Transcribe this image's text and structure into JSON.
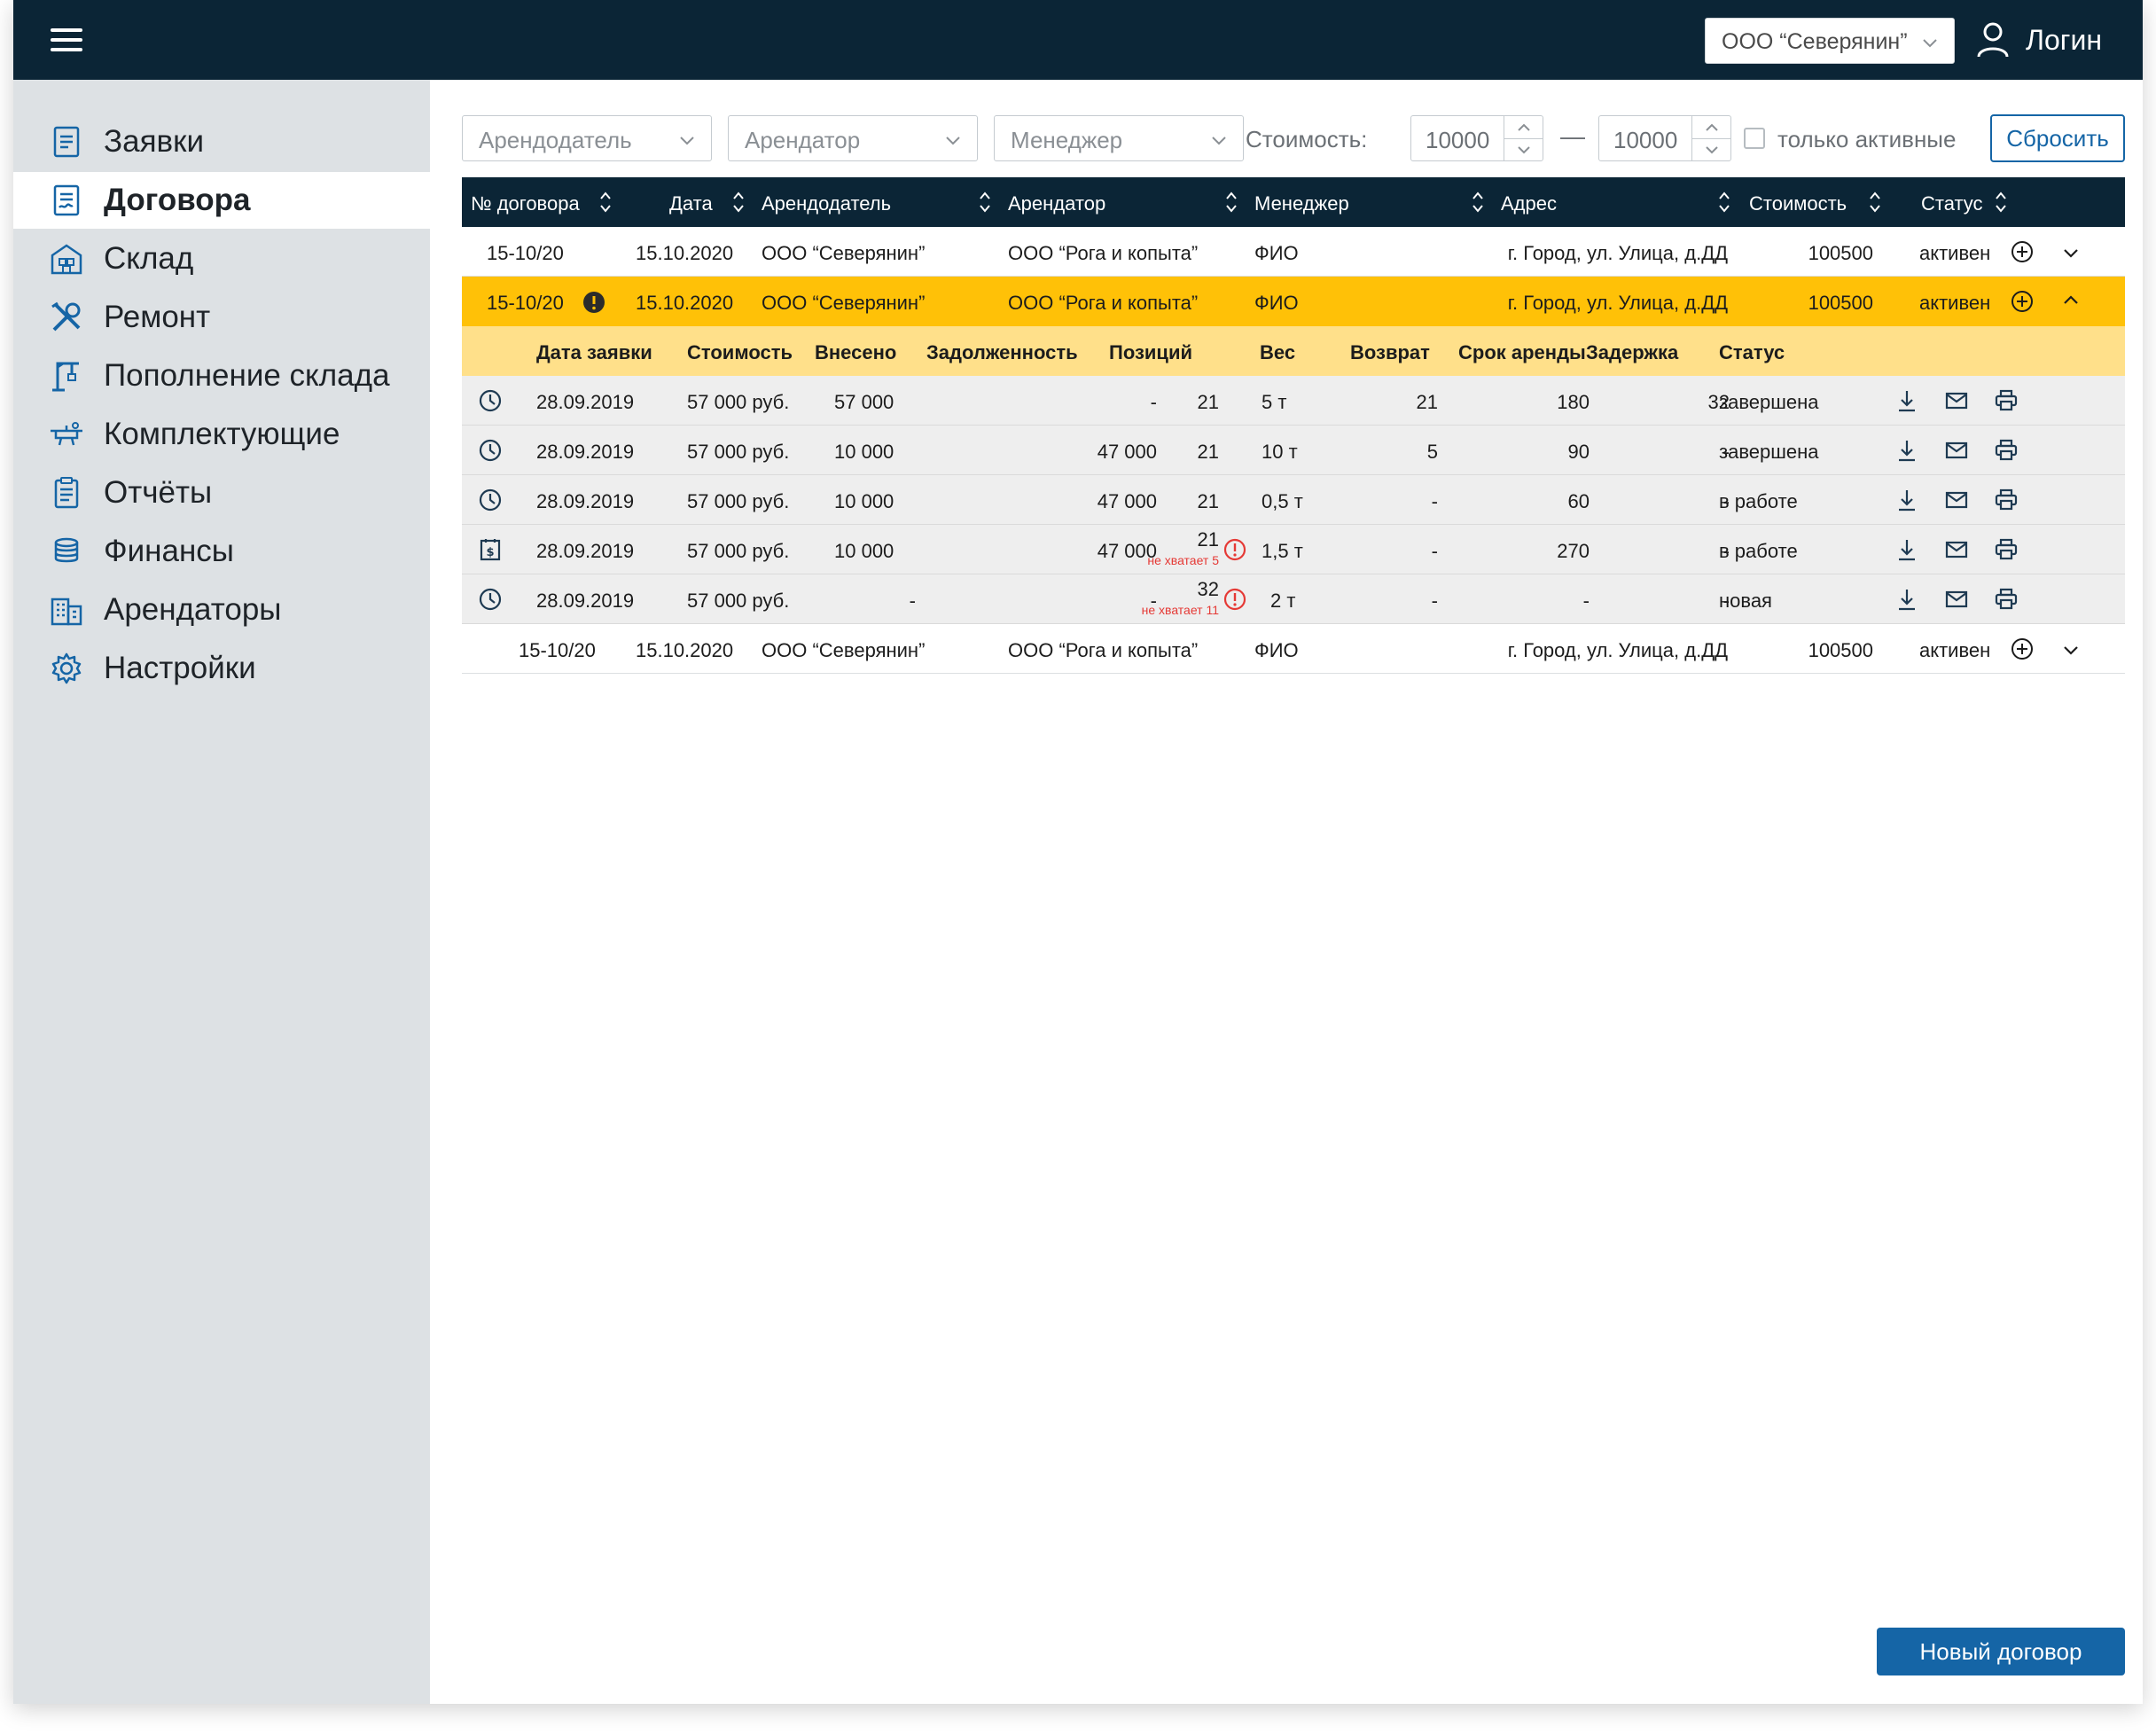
{
  "header": {
    "company": "ООО “Северянин”",
    "user": "Логин"
  },
  "sidebar": {
    "items": [
      {
        "label": "Заявки",
        "icon": "document-list-icon"
      },
      {
        "label": "Договора",
        "icon": "contract-icon",
        "active": true
      },
      {
        "label": "Склад",
        "icon": "warehouse-icon"
      },
      {
        "label": "Ремонт",
        "icon": "tools-icon"
      },
      {
        "label": "Пополнение склада",
        "icon": "crane-icon"
      },
      {
        "label": "Комплектующие",
        "icon": "components-icon"
      },
      {
        "label": "Отчёты",
        "icon": "clipboard-icon"
      },
      {
        "label": "Финансы",
        "icon": "coins-icon"
      },
      {
        "label": "Арендаторы",
        "icon": "buildings-icon"
      },
      {
        "label": "Настройки",
        "icon": "gear-icon"
      }
    ]
  },
  "filters": {
    "landlord": "Арендодатель",
    "tenant": "Арендатор",
    "manager": "Менеджер",
    "cost_label": "Стоимость:",
    "cost_from": "10000",
    "cost_to": "10000",
    "dash": "—",
    "only_active": "только активные",
    "reset": "Сбросить"
  },
  "table": {
    "headers": {
      "number": "№ договора",
      "date": "Дата",
      "landlord": "Арендодатель",
      "tenant": "Арендатор",
      "manager": "Менеджер",
      "address": "Адрес",
      "cost": "Стоимость",
      "status": "Статус"
    },
    "rows": [
      {
        "number": "15-10/20",
        "date": "15.10.2020",
        "landlord": "ООО “Северянин”",
        "tenant": "ООО “Рога и копыта”",
        "manager": "ФИО",
        "address": "г. Город, ул. Улица, д.ДД",
        "cost": "100500",
        "status": "активен"
      },
      {
        "number": "15-10/20",
        "date": "15.10.2020",
        "landlord": "ООО “Северянин”",
        "tenant": "ООО “Рога и копыта”",
        "manager": "ФИО",
        "address": "г. Город, ул. Улица, д.ДД",
        "cost": "100500",
        "status": "активен"
      },
      {
        "number": "15-10/20",
        "date": "15.10.2020",
        "landlord": "ООО “Северянин”",
        "tenant": "ООО “Рога и копыта”",
        "manager": "ФИО",
        "address": "г. Город, ул. Улица, д.ДД",
        "cost": "100500",
        "status": "активен"
      }
    ]
  },
  "subtable": {
    "headers": {
      "date": "Дата заявки",
      "cost": "Стоимость",
      "paid": "Внесено",
      "debt": "Задолженность",
      "positions": "Позиций",
      "weight": "Вес",
      "return": "Возврат",
      "term": "Срок аренды",
      "delay": "Задержка",
      "status": "Статус"
    },
    "rows": [
      {
        "icon": "clock-icon",
        "date": "28.09.2019",
        "cost": "57 000 руб.",
        "paid": "57 000",
        "debt": "-",
        "positions": "21",
        "weight": "5 т",
        "return": "21",
        "term": "180",
        "delay": "32",
        "status": "завершена"
      },
      {
        "icon": "clock-icon",
        "date": "28.09.2019",
        "cost": "57 000 руб.",
        "paid": "10 000",
        "debt": "47 000",
        "positions": "21",
        "weight": "10 т",
        "return": "5",
        "term": "90",
        "delay": "-",
        "status": "завершена"
      },
      {
        "icon": "clock-icon",
        "date": "28.09.2019",
        "cost": "57 000 руб.",
        "paid": "10 000",
        "debt": "47 000",
        "positions": "21",
        "weight": "0,5 т",
        "return": "-",
        "term": "60",
        "delay": "-",
        "status": "в работе"
      },
      {
        "icon": "invoice-icon",
        "date": "28.09.2019",
        "cost": "57 000 руб.",
        "paid": "10 000",
        "debt": "47 000",
        "positions": "21",
        "shortage": "не хватает 5",
        "weight": "1,5 т",
        "return": "-",
        "term": "270",
        "delay": "-",
        "status": "в работе"
      },
      {
        "icon": "clock-icon",
        "date": "28.09.2019",
        "cost": "57 000 руб.",
        "paid": "-",
        "debt": "-",
        "positions": "32",
        "shortage": "не хватает 11",
        "weight": "2 т",
        "return": "-",
        "term": "-",
        "delay": "-",
        "status": "новая"
      }
    ]
  },
  "new_contract": "Новый договор",
  "colors": {
    "topbar": "#0b2536",
    "highlight": "#ffc107",
    "subheader": "#ffe08a",
    "accent": "#1565a6",
    "error": "#e53935"
  }
}
